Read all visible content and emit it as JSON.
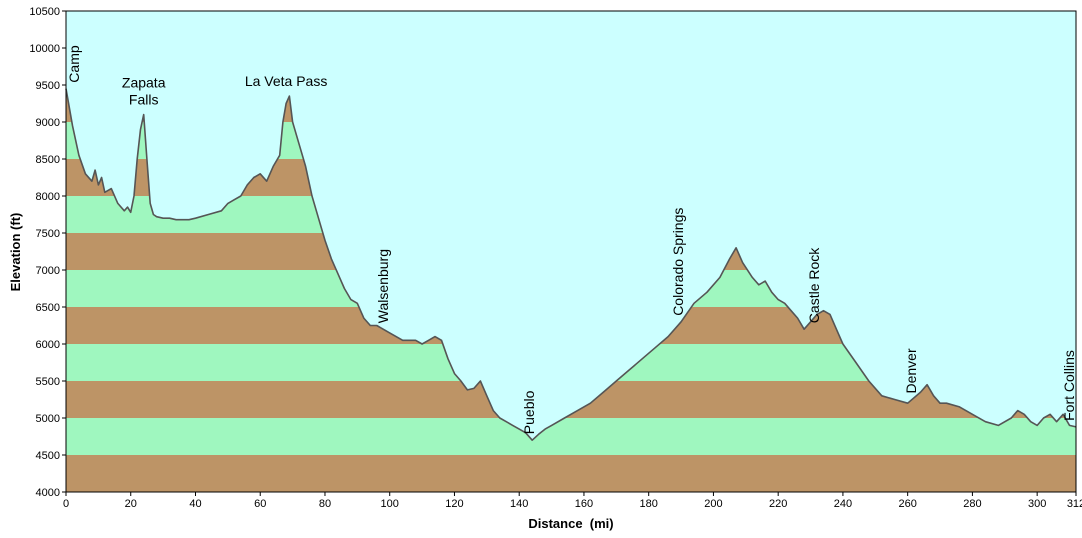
{
  "chart_data": {
    "type": "area",
    "title": "",
    "xlabel": "Distance  (mi)",
    "ylabel": "Elevation (ft)",
    "xlim": [
      0,
      312
    ],
    "ylim": [
      4000,
      10500
    ],
    "x_ticks": [
      0,
      20,
      40,
      60,
      80,
      100,
      120,
      140,
      160,
      180,
      200,
      220,
      240,
      260,
      280,
      300,
      312
    ],
    "y_ticks": [
      4000,
      4500,
      5000,
      5500,
      6000,
      6500,
      7000,
      7500,
      8000,
      8500,
      9000,
      9500,
      10000,
      10500
    ],
    "band_interval_ft": 500,
    "grid": false,
    "colors": {
      "sky": "#ccffff",
      "band_brown": "#bd9466",
      "band_green": "#9ff7bf",
      "profile_line": "#555555"
    },
    "series": [
      {
        "x": [
          0,
          2,
          4,
          6,
          8,
          9,
          10,
          11,
          12,
          14,
          16,
          18,
          19,
          20,
          21,
          22,
          23,
          24,
          25,
          26,
          27,
          28,
          30,
          32,
          34,
          36,
          38,
          40,
          44,
          48,
          50,
          52,
          54,
          56,
          58,
          60,
          62,
          64,
          66,
          67,
          68,
          69,
          70,
          72,
          74,
          76,
          78,
          80,
          82,
          84,
          86,
          88,
          90,
          92,
          94,
          96,
          98,
          100,
          104,
          108,
          110,
          112,
          114,
          116,
          118,
          120,
          122,
          124,
          126,
          128,
          130,
          132,
          134,
          136,
          138,
          140,
          142,
          144,
          146,
          148,
          150,
          154,
          158,
          162,
          166,
          170,
          174,
          178,
          182,
          186,
          190,
          194,
          198,
          202,
          205,
          207,
          209,
          212,
          214,
          216,
          218,
          220,
          222,
          224,
          226,
          228,
          230,
          232,
          234,
          236,
          238,
          240,
          244,
          248,
          252,
          256,
          260,
          264,
          266,
          268,
          270,
          272,
          276,
          280,
          284,
          288,
          292,
          294,
          296,
          298,
          300,
          302,
          304,
          306,
          308,
          310,
          312
        ],
        "y": [
          9450,
          8950,
          8550,
          8300,
          8200,
          8350,
          8150,
          8250,
          8050,
          8100,
          7900,
          7800,
          7850,
          7780,
          8000,
          8500,
          8900,
          9100,
          8500,
          7900,
          7750,
          7720,
          7700,
          7700,
          7680,
          7680,
          7680,
          7700,
          7750,
          7800,
          7900,
          7950,
          8000,
          8150,
          8250,
          8300,
          8200,
          8400,
          8550,
          9000,
          9250,
          9350,
          9000,
          8700,
          8400,
          8000,
          7700,
          7400,
          7150,
          6950,
          6750,
          6600,
          6550,
          6350,
          6250,
          6250,
          6200,
          6150,
          6050,
          6050,
          6000,
          6050,
          6100,
          6050,
          5800,
          5600,
          5500,
          5380,
          5400,
          5500,
          5300,
          5100,
          5000,
          4950,
          4900,
          4850,
          4800,
          4700,
          4780,
          4850,
          4900,
          5000,
          5100,
          5200,
          5350,
          5500,
          5650,
          5800,
          5950,
          6100,
          6300,
          6550,
          6700,
          6900,
          7150,
          7300,
          7100,
          6900,
          6800,
          6850,
          6700,
          6600,
          6550,
          6450,
          6350,
          6200,
          6300,
          6400,
          6450,
          6400,
          6200,
          6000,
          5750,
          5500,
          5300,
          5250,
          5200,
          5350,
          5450,
          5300,
          5200,
          5200,
          5150,
          5050,
          4950,
          4900,
          5000,
          5100,
          5050,
          4950,
          4900,
          5000,
          5050,
          4950,
          5050,
          4900,
          4880
        ]
      }
    ],
    "annotations": [
      {
        "text": "Camp",
        "x": 0,
        "y": 9450,
        "rotation": -90
      },
      {
        "text": "Zapata\nFalls",
        "x": 24,
        "y": 9100,
        "rotation": 0
      },
      {
        "text": "La Veta Pass",
        "x": 68,
        "y": 9350,
        "rotation": 0
      },
      {
        "text": "Walsenburg",
        "x": 98,
        "y": 6200,
        "rotation": -90
      },
      {
        "text": "Pueblo",
        "x": 143,
        "y": 4700,
        "rotation": -90
      },
      {
        "text": "Colorado Springs",
        "x": 189,
        "y": 6300,
        "rotation": -90
      },
      {
        "text": "Castle Rock",
        "x": 231,
        "y": 6200,
        "rotation": -90
      },
      {
        "text": "Denver",
        "x": 261,
        "y": 5250,
        "rotation": -90
      },
      {
        "text": "Fort Collins",
        "x": 311,
        "y": 4880,
        "rotation": -90
      }
    ]
  }
}
